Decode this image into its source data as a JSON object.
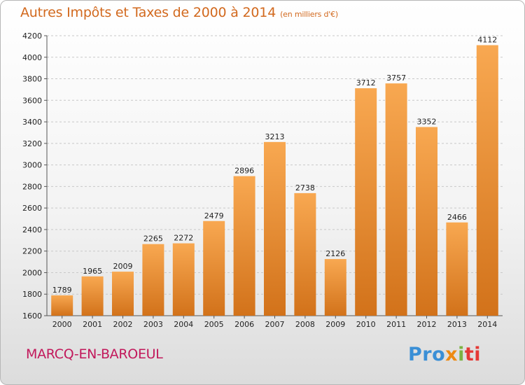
{
  "title": {
    "main": "Autres Impôts et Taxes de 2000 à 2014",
    "unit": "(en milliers d'€)"
  },
  "city": "MARCQ-EN-BAROEUL",
  "logo": {
    "parts": [
      "Pro",
      "x",
      "i",
      "ti"
    ]
  },
  "colors": {
    "bar_top": "#f8a851",
    "bar_bottom": "#d2721a",
    "title": "#d2691e",
    "city": "#c2185b"
  },
  "chart_data": {
    "type": "bar",
    "categories": [
      "2000",
      "2001",
      "2002",
      "2003",
      "2004",
      "2005",
      "2006",
      "2007",
      "2008",
      "2009",
      "2010",
      "2011",
      "2012",
      "2013",
      "2014"
    ],
    "values": [
      1789,
      1965,
      2009,
      2265,
      2272,
      2479,
      2896,
      3213,
      2738,
      2126,
      3712,
      3757,
      3352,
      2466,
      4112
    ],
    "data_labels": [
      "1789",
      "1965",
      "2009",
      "2265",
      "2272",
      "2479",
      "2896",
      "3213",
      "2738",
      "2126",
      "3712",
      "3757",
      "3352",
      "2466",
      "4112"
    ],
    "ylim": [
      1600,
      4200
    ],
    "yticks": [
      1600,
      1800,
      2000,
      2200,
      2400,
      2600,
      2800,
      3000,
      3200,
      3400,
      3600,
      3800,
      4000,
      4200
    ],
    "grid": true,
    "title": "Autres Impôts et Taxes de 2000 à 2014",
    "xlabel": "",
    "ylabel": ""
  }
}
